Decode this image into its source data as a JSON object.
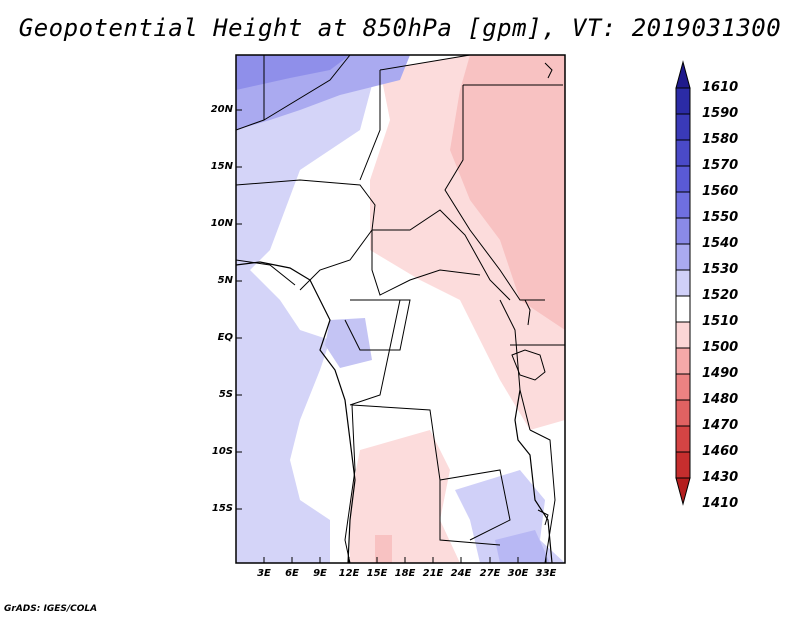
{
  "title": "Geopotential Height at 850hPa [gpm], VT: 2019031300",
  "footer": "GrADS: IGES/COLA",
  "map": {
    "lat_labels": [
      "20N",
      "15N",
      "10N",
      "5N",
      "EQ",
      "5S",
      "10S",
      "15S"
    ],
    "lon_labels": [
      "3E",
      "6E",
      "9E",
      "12E",
      "15E",
      "18E",
      "21E",
      "24E",
      "27E",
      "30E",
      "33E"
    ]
  },
  "colorbar": {
    "labels": [
      "1610",
      "1590",
      "1580",
      "1570",
      "1560",
      "1550",
      "1540",
      "1530",
      "1520",
      "1510",
      "1500",
      "1490",
      "1480",
      "1470",
      "1460",
      "1430",
      "1410"
    ],
    "colors": [
      "#1f1a8c",
      "#2b2ba6",
      "#3a3ab8",
      "#4a4ac8",
      "#5a5ad6",
      "#6f6fe0",
      "#8a8ae8",
      "#aaaaf0",
      "#d0d0f8",
      "#ffffff",
      "#fcd6d6",
      "#f5a8a8",
      "#ec8282",
      "#e06262",
      "#d44444",
      "#c62e2e",
      "#b41e1e"
    ]
  }
}
